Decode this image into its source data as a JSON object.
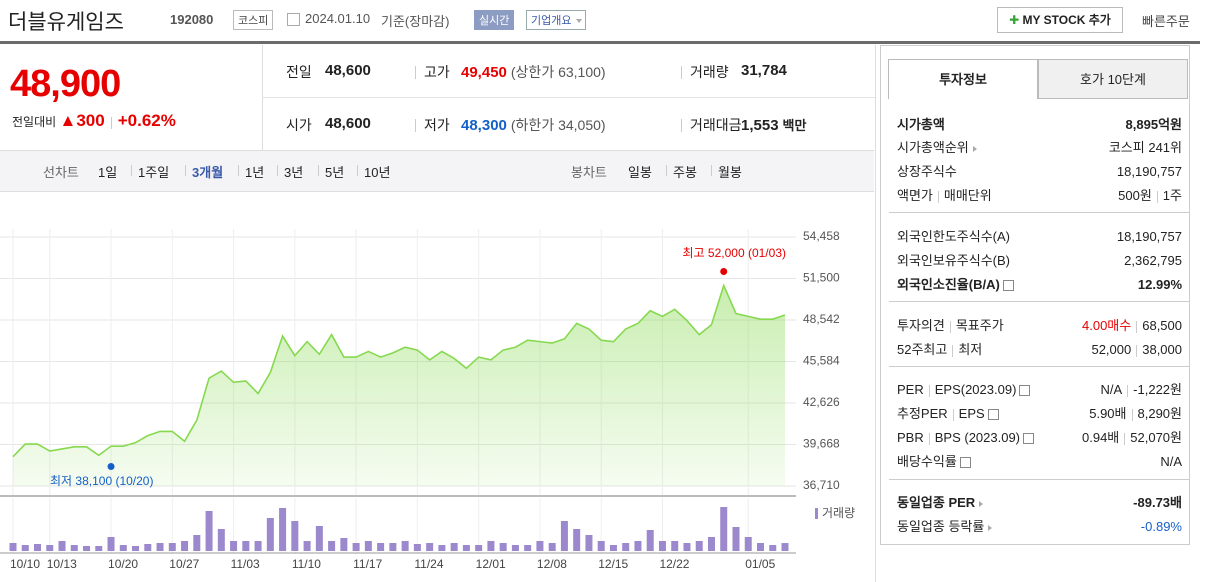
{
  "header": {
    "name": "더블유게임즈",
    "code": "192080",
    "market": "코스피",
    "date": "2024.01.10",
    "basis": "기준(장마감)",
    "realtime": "실시간",
    "company_info": "기업개요",
    "my_stock": "MY STOCK 추가",
    "quick_order": "빠른주문"
  },
  "price": {
    "current": "48,900",
    "change_label": "전일대비",
    "change": "▲300",
    "change_rate": "+0.62%"
  },
  "summary": [
    [
      {
        "label": "전일",
        "value": "48,600"
      },
      {
        "label": "고가",
        "value": "49,450",
        "extra": "(상한가 63,100)"
      },
      {
        "label": "거래량",
        "value": "31,784"
      }
    ],
    [
      {
        "label": "시가",
        "value": "48,600"
      },
      {
        "label": "저가",
        "value": "48,300",
        "extra": "(하한가 34,050)"
      },
      {
        "label": "거래대금",
        "value": "1,553",
        "unit": "백만"
      }
    ]
  ],
  "periods": {
    "line_label": "선차트",
    "line": [
      "1일",
      "1주일",
      "3개월",
      "1년",
      "3년",
      "5년",
      "10년"
    ],
    "candle_label": "봉차트",
    "candle": [
      "일봉",
      "주봉",
      "월봉"
    ]
  },
  "chart_data": {
    "type": "line",
    "categories": [
      "10/10",
      null,
      null,
      "10/13",
      null,
      null,
      null,
      null,
      "10/20",
      null,
      null,
      null,
      null,
      "10/27",
      null,
      null,
      null,
      null,
      "11/03",
      null,
      null,
      null,
      null,
      "11/10",
      null,
      null,
      null,
      null,
      "11/17",
      null,
      null,
      null,
      null,
      "11/24",
      null,
      null,
      null,
      null,
      "12/01",
      null,
      null,
      null,
      null,
      "12/08",
      null,
      null,
      null,
      null,
      "12/15",
      null,
      null,
      null,
      null,
      "12/22",
      null,
      null,
      null,
      null,
      null,
      null,
      "01/05",
      null,
      null,
      null
    ],
    "values": [
      38800,
      39700,
      39700,
      39200,
      39350,
      39500,
      39500,
      38900,
      39550,
      39550,
      39800,
      40300,
      40600,
      40600,
      39900,
      41400,
      44400,
      44900,
      44100,
      44200,
      43300,
      44800,
      47400,
      46000,
      47000,
      46100,
      47500,
      45900,
      45900,
      46300,
      45900,
      46200,
      46600,
      46400,
      45700,
      46300,
      45800,
      45100,
      45900,
      45700,
      46400,
      46600,
      47100,
      47000,
      46900,
      47200,
      48300,
      47900,
      47100,
      47000,
      47900,
      48300,
      49200,
      48800,
      49300,
      48500,
      47500,
      48200,
      51000,
      49000,
      48800,
      48600,
      48600,
      48900
    ],
    "color": "#86d94f",
    "ylim": [
      36710,
      54458
    ],
    "yticks": [
      {
        "value": 36710,
        "label": "36,710"
      },
      {
        "value": 39668,
        "label": "39,668"
      },
      {
        "value": 42626,
        "label": "42,626"
      },
      {
        "value": 45584,
        "label": "45,584"
      },
      {
        "value": 48542,
        "label": "48,542"
      },
      {
        "value": 51500,
        "label": "51,500"
      },
      {
        "value": 54458,
        "label": "54,458"
      }
    ],
    "grid": true,
    "annotations": [
      {
        "text": "최고 52,000 (01/03)",
        "value": 52000,
        "color": "#e60000"
      },
      {
        "text": "최저 38,100 (10/20)",
        "value": 38100,
        "color": "#1560c8"
      }
    ],
    "volume": {
      "name": "거래량",
      "color": "#9c88cc",
      "values": [
        32000,
        24000,
        28000,
        24000,
        40000,
        24000,
        20000,
        20000,
        56000,
        24000,
        20000,
        28000,
        32000,
        32000,
        40000,
        64000,
        160000,
        88000,
        40000,
        40000,
        40000,
        132000,
        172000,
        120000,
        40000,
        100000,
        40000,
        52000,
        32000,
        40000,
        32000,
        32000,
        40000,
        28000,
        32000,
        24000,
        32000,
        24000,
        24000,
        40000,
        32000,
        24000,
        24000,
        40000,
        32000,
        120000,
        88000,
        64000,
        40000,
        24000,
        32000,
        40000,
        84000,
        40000,
        40000,
        32000,
        40000,
        56000,
        176000,
        96000,
        56000,
        32000,
        24000,
        31784
      ]
    }
  },
  "side": {
    "tabs": [
      "투자정보",
      "호가 10단계"
    ],
    "sections": [
      [
        {
          "label": [
            "시가총액"
          ],
          "value": [
            "8,895억원"
          ]
        },
        {
          "label": [
            "시가총액순위"
          ],
          "value": [
            "코스피 241위"
          ]
        },
        {
          "label": [
            "상장주식수"
          ],
          "value": [
            "18,190,757"
          ]
        },
        {
          "label": [
            "액면가",
            "매매단위"
          ],
          "value": [
            "500원",
            "1주"
          ]
        }
      ],
      [
        {
          "label": [
            "외국인한도주식수(A)"
          ],
          "value": [
            "18,190,757"
          ]
        },
        {
          "label": [
            "외국인보유주식수(B)"
          ],
          "value": [
            "2,362,795"
          ]
        },
        {
          "label": [
            "외국인소진율(B/A)"
          ],
          "value": [
            "12.99%"
          ]
        }
      ],
      [
        {
          "label": [
            "투자의견",
            "목표주가"
          ],
          "value": [
            "4.00매수",
            "68,500"
          ]
        },
        {
          "label": [
            "52주최고",
            "최저"
          ],
          "value": [
            "52,000",
            "38,000"
          ]
        }
      ],
      [
        {
          "label": [
            "PER",
            "EPS(2023.09)"
          ],
          "value": [
            "N/A",
            "-1,222원"
          ]
        },
        {
          "label": [
            "추정PER",
            "EPS"
          ],
          "value": [
            "5.90배",
            "8,290원"
          ]
        },
        {
          "label": [
            "PBR",
            "BPS (2023.09)"
          ],
          "value": [
            "0.94배",
            "52,070원"
          ]
        },
        {
          "label": [
            "배당수익률"
          ],
          "value": [
            "N/A"
          ]
        }
      ],
      [
        {
          "label": [
            "동일업종 PER"
          ],
          "value": [
            "-89.73배"
          ]
        },
        {
          "label": [
            "동일업종 등락률"
          ],
          "value": [
            "-0.89%"
          ]
        }
      ]
    ]
  }
}
